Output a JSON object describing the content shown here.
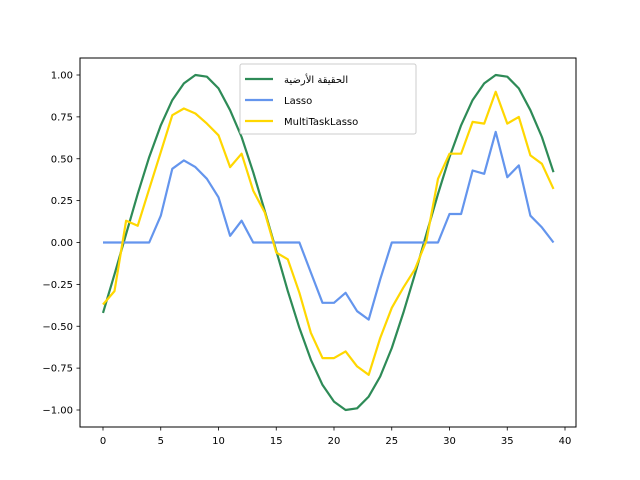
{
  "chart_data": {
    "type": "line",
    "title": "",
    "xlabel": "",
    "ylabel": "",
    "xlim": [
      -2,
      41
    ],
    "ylim": [
      -1.1,
      1.1
    ],
    "grid": false,
    "legend_position": "upper center",
    "x": [
      0,
      1,
      2,
      3,
      4,
      5,
      6,
      7,
      8,
      9,
      10,
      11,
      12,
      13,
      14,
      15,
      16,
      17,
      18,
      19,
      20,
      21,
      22,
      23,
      24,
      25,
      26,
      27,
      28,
      29,
      30,
      31,
      32,
      33,
      34,
      35,
      36,
      37,
      38,
      39
    ],
    "x_ticks": [
      0,
      5,
      10,
      15,
      20,
      25,
      30,
      35,
      40
    ],
    "x_tick_labels": [
      "0",
      "5",
      "10",
      "15",
      "20",
      "25",
      "30",
      "35",
      "40"
    ],
    "y_ticks": [
      1.0,
      0.75,
      0.5,
      0.25,
      0.0,
      -0.25,
      -0.5,
      -0.75,
      -1.0
    ],
    "y_tick_labels": [
      "1.00",
      "0.75",
      "0.50",
      "0.25",
      "0.00",
      "−0.25",
      "−0.50",
      "−0.75",
      "−1.00"
    ],
    "series": [
      {
        "name": "الحقيقة الأرضية",
        "color": "#2e8b57",
        "values": [
          -0.42,
          -0.19,
          0.05,
          0.29,
          0.51,
          0.7,
          0.85,
          0.95,
          1.0,
          0.99,
          0.92,
          0.79,
          0.63,
          0.42,
          0.19,
          -0.05,
          -0.29,
          -0.51,
          -0.7,
          -0.85,
          -0.95,
          -1.0,
          -0.99,
          -0.92,
          -0.8,
          -0.63,
          -0.42,
          -0.19,
          0.05,
          0.29,
          0.51,
          0.7,
          0.85,
          0.95,
          1.0,
          0.99,
          0.92,
          0.79,
          0.63,
          0.42
        ]
      },
      {
        "name": "Lasso",
        "color": "#6495ed",
        "values": [
          0,
          0,
          0,
          0,
          0,
          0.16,
          0.44,
          0.49,
          0.45,
          0.38,
          0.27,
          0.04,
          0.13,
          0,
          0,
          0,
          0,
          0,
          -0.18,
          -0.36,
          -0.36,
          -0.3,
          -0.41,
          -0.46,
          -0.22,
          0,
          0,
          0,
          0,
          0,
          0.17,
          0.17,
          0.43,
          0.41,
          0.66,
          0.39,
          0.46,
          0.16,
          0.09,
          0
        ]
      },
      {
        "name": "MultiTaskLasso",
        "color": "#ffd700",
        "values": [
          -0.37,
          -0.29,
          0.13,
          0.1,
          0.32,
          0.54,
          0.76,
          0.8,
          0.77,
          0.71,
          0.64,
          0.45,
          0.53,
          0.31,
          0.18,
          -0.06,
          -0.1,
          -0.3,
          -0.54,
          -0.69,
          -0.69,
          -0.65,
          -0.74,
          -0.79,
          -0.57,
          -0.39,
          -0.27,
          -0.16,
          0.01,
          0.38,
          0.53,
          0.53,
          0.72,
          0.71,
          0.9,
          0.71,
          0.75,
          0.52,
          0.47,
          0.32
        ]
      }
    ]
  },
  "legend": {
    "items": [
      {
        "label": "الحقيقة الأرضية",
        "color": "#2e8b57"
      },
      {
        "label": "Lasso",
        "color": "#6495ed"
      },
      {
        "label": "MultiTaskLasso",
        "color": "#ffd700"
      }
    ]
  }
}
